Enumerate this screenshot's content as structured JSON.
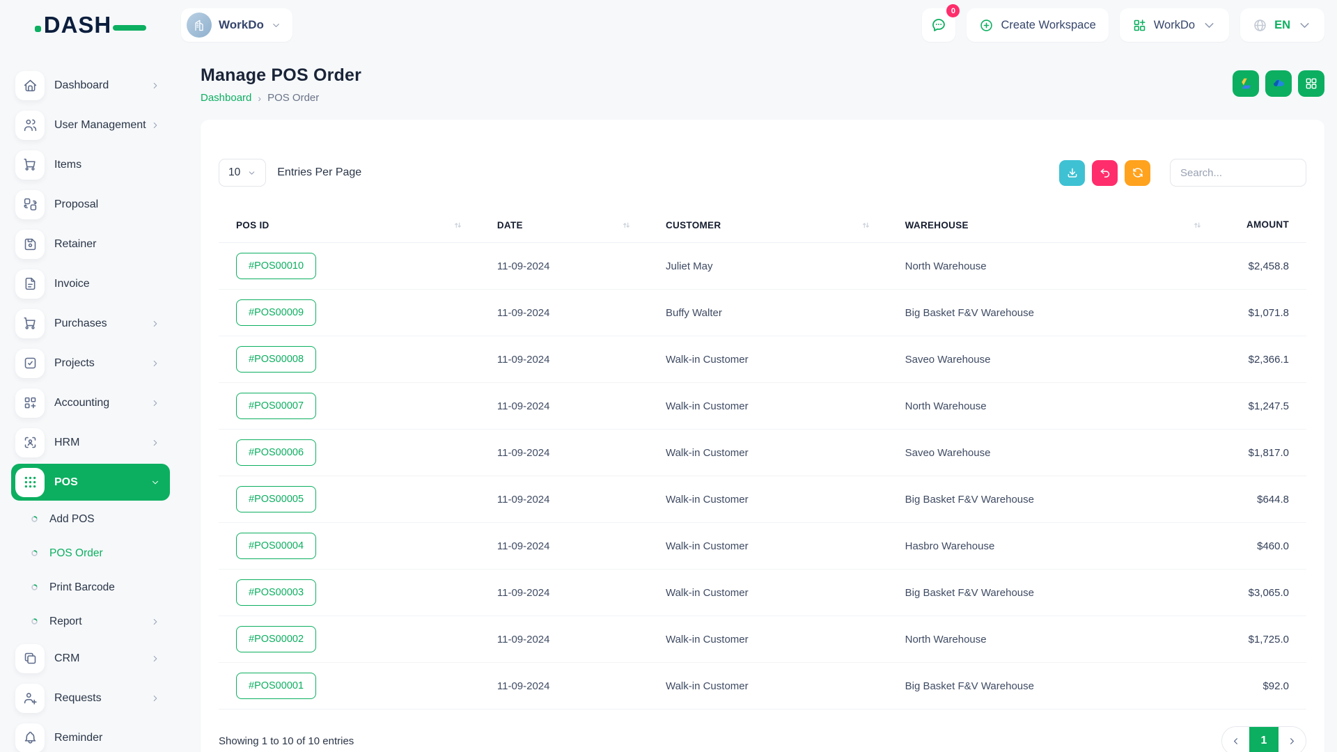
{
  "colors": {
    "accent_green": "#0caf60",
    "navy_logo": "#0c1e3d",
    "cyan_button": "#3ec1d3",
    "pink_button": "#ff2d6b",
    "orange_button": "#ffa21e",
    "page_background": "#f6f8fa"
  },
  "brand": {
    "logo_text": "DASH"
  },
  "topbar": {
    "workspace_current": "WorkDo",
    "messages_badge_count": "0",
    "create_workspace_label": "Create Workspace",
    "workspace_menu_label": "WorkDo",
    "language_code": "EN"
  },
  "sidebar": {
    "items": [
      {
        "label": "Dashboard",
        "icon": "home",
        "chevron": "right"
      },
      {
        "label": "User Management",
        "icon": "users",
        "chevron": "right"
      },
      {
        "label": "Items",
        "icon": "cart"
      },
      {
        "label": "Proposal",
        "icon": "transform"
      },
      {
        "label": "Retainer",
        "icon": "floppy"
      },
      {
        "label": "Invoice",
        "icon": "file-invoice"
      },
      {
        "label": "Purchases",
        "icon": "cart",
        "chevron": "right"
      },
      {
        "label": "Projects",
        "icon": "checkbox",
        "chevron": "right"
      },
      {
        "label": "Accounting",
        "icon": "grid-plus",
        "chevron": "right"
      },
      {
        "label": "HRM",
        "icon": "user-scan",
        "chevron": "right"
      },
      {
        "label": "POS",
        "icon": "dots-grid",
        "chevron": "down",
        "active": true
      },
      {
        "label": "Add POS",
        "sub": true
      },
      {
        "label": "POS Order",
        "sub": true,
        "active": true
      },
      {
        "label": "Print Barcode",
        "sub": true
      },
      {
        "label": "Report",
        "sub": true,
        "chevron": "right"
      },
      {
        "label": "CRM",
        "icon": "copy",
        "chevron": "right"
      },
      {
        "label": "Requests",
        "icon": "user-plus",
        "chevron": "right"
      },
      {
        "label": "Reminder",
        "icon": "bell"
      }
    ]
  },
  "page": {
    "title": "Manage POS Order",
    "breadcrumb": {
      "root": "Dashboard",
      "current": "POS Order"
    }
  },
  "controls": {
    "entries_per_page_value": "10",
    "entries_per_page_label": "Entries Per Page",
    "search_placeholder": "Search..."
  },
  "table": {
    "headers": [
      "POS ID",
      "DATE",
      "CUSTOMER",
      "WAREHOUSE",
      "AMOUNT"
    ],
    "rows": [
      {
        "pos_id": "#POS00010",
        "date": "11-09-2024",
        "customer": "Juliet May",
        "warehouse": "North Warehouse",
        "amount": "$2,458.8"
      },
      {
        "pos_id": "#POS00009",
        "date": "11-09-2024",
        "customer": "Buffy Walter",
        "warehouse": "Big Basket F&V Warehouse",
        "amount": "$1,071.8"
      },
      {
        "pos_id": "#POS00008",
        "date": "11-09-2024",
        "customer": "Walk-in Customer",
        "warehouse": "Saveo Warehouse",
        "amount": "$2,366.1"
      },
      {
        "pos_id": "#POS00007",
        "date": "11-09-2024",
        "customer": "Walk-in Customer",
        "warehouse": "North Warehouse",
        "amount": "$1,247.5"
      },
      {
        "pos_id": "#POS00006",
        "date": "11-09-2024",
        "customer": "Walk-in Customer",
        "warehouse": "Saveo Warehouse",
        "amount": "$1,817.0"
      },
      {
        "pos_id": "#POS00005",
        "date": "11-09-2024",
        "customer": "Walk-in Customer",
        "warehouse": "Big Basket F&V Warehouse",
        "amount": "$644.8"
      },
      {
        "pos_id": "#POS00004",
        "date": "11-09-2024",
        "customer": "Walk-in Customer",
        "warehouse": "Hasbro Warehouse",
        "amount": "$460.0"
      },
      {
        "pos_id": "#POS00003",
        "date": "11-09-2024",
        "customer": "Walk-in Customer",
        "warehouse": "Big Basket F&V Warehouse",
        "amount": "$3,065.0"
      },
      {
        "pos_id": "#POS00002",
        "date": "11-09-2024",
        "customer": "Walk-in Customer",
        "warehouse": "North Warehouse",
        "amount": "$1,725.0"
      },
      {
        "pos_id": "#POS00001",
        "date": "11-09-2024",
        "customer": "Walk-in Customer",
        "warehouse": "Big Basket F&V Warehouse",
        "amount": "$92.0"
      }
    ]
  },
  "table_footer": {
    "showing_text": "Showing 1 to 10 of 10 entries",
    "pagination": {
      "current_page": "1"
    }
  }
}
